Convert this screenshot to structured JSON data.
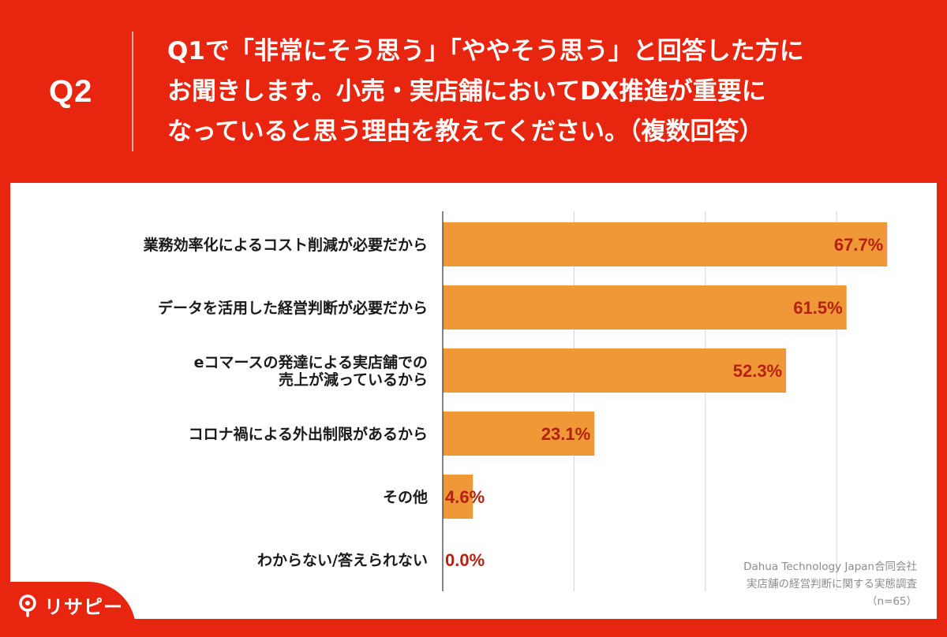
{
  "header": {
    "question_number": "Q2",
    "question_lines": [
      "Q1で「非常にそう思う」「ややそう思う」と回答した方に",
      "お聞きします。小売・実店舗においてDX推進が重要に",
      "なっていると思う理由を教えてください。（複数回答）"
    ]
  },
  "chart_data": {
    "type": "bar",
    "orientation": "horizontal",
    "categories": [
      [
        "業務効率化によるコスト削減が必要だから"
      ],
      [
        "データを活用した経営判断が必要だから"
      ],
      [
        "eコマースの発達による実店舗での",
        "売上が減っているから"
      ],
      [
        "コロナ禍による外出制限があるから"
      ],
      [
        "その他"
      ],
      [
        "わからない/答えられない"
      ]
    ],
    "values": [
      67.7,
      61.5,
      52.3,
      23.1,
      4.6,
      0.0
    ],
    "value_labels": [
      "67.7%",
      "61.5%",
      "52.3%",
      "23.1%",
      "4.6%",
      "0.0%"
    ],
    "xlim": [
      0,
      80
    ],
    "grid": true,
    "bar_color": "#ef9838",
    "label_color": "#b5200f"
  },
  "source": {
    "lines": [
      "Dahua Technology Japan合同会社",
      "実店舗の経営判断に関する実態調査",
      "（n=65）"
    ]
  },
  "logo": {
    "text": "リサピー"
  },
  "colors": {
    "brand_red": "#e8250f",
    "bar_orange": "#ef9838"
  }
}
